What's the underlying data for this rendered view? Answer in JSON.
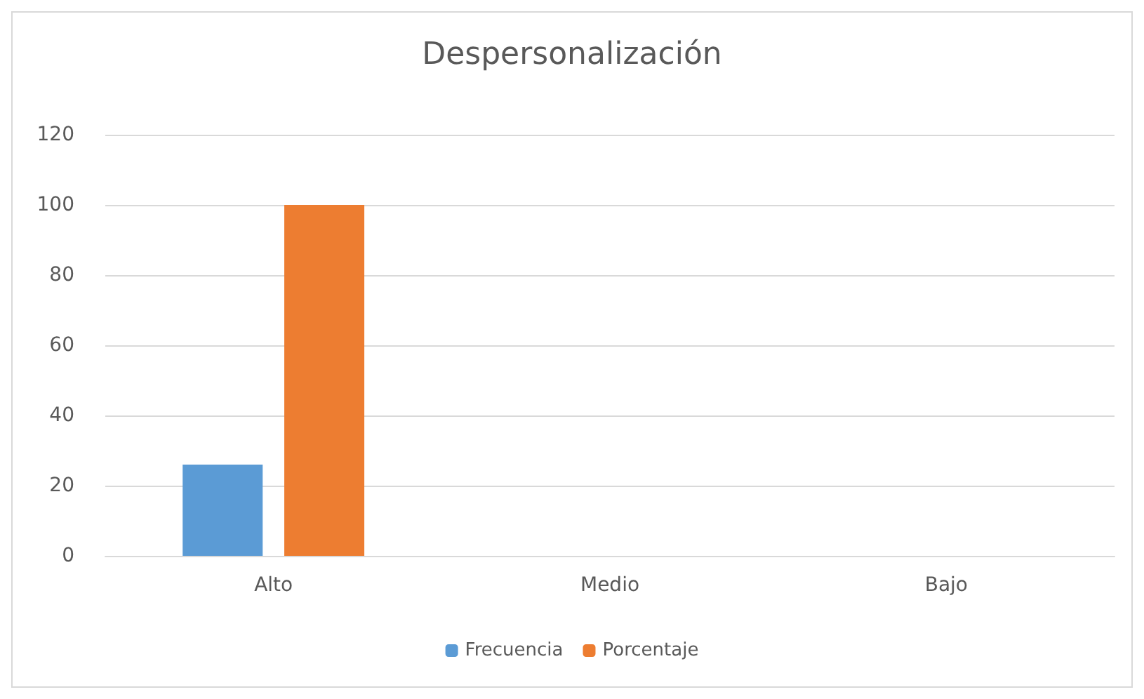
{
  "chart_data": {
    "type": "bar",
    "title": "Despersonalización",
    "categories": [
      "Alto",
      "Medio",
      "Bajo"
    ],
    "series": [
      {
        "name": "Frecuencia",
        "color": "#5b9bd5",
        "values": [
          26,
          0,
          0
        ]
      },
      {
        "name": "Porcentaje",
        "color": "#ed7d31",
        "values": [
          100,
          0,
          0
        ]
      }
    ],
    "ylim": [
      0,
      120
    ],
    "yticks": [
      0,
      20,
      40,
      60,
      80,
      100,
      120
    ],
    "grid": "y",
    "legend": "bottom"
  }
}
